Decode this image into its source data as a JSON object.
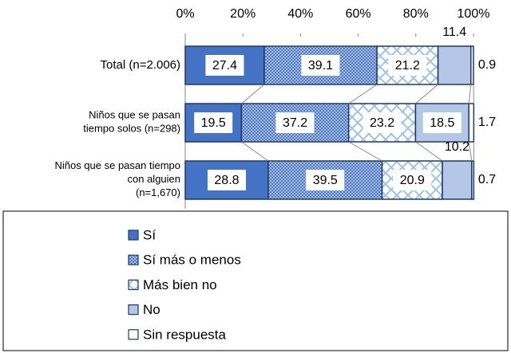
{
  "chart_data": {
    "type": "stacked-bar-horizontal",
    "categories": [
      "Total (n=2.006)",
      "Niños que se pasan\ntiempo solos (n=298)",
      "Niños que se pasan tiempo\ncon alguien\n(n=1,670)"
    ],
    "series": [
      {
        "name": "Sí",
        "color": "#4472c4",
        "pattern": "solid",
        "values": [
          27.4,
          19.5,
          28.8
        ]
      },
      {
        "name": "Sí más o menos",
        "color": "#4472c4",
        "pattern": "dots",
        "values": [
          39.1,
          37.2,
          39.5
        ]
      },
      {
        "name": "Más bien no",
        "color": "#9dc3e6",
        "pattern": "crosshatch",
        "values": [
          21.2,
          23.2,
          20.9
        ]
      },
      {
        "name": "No",
        "color": "#b4c7e7",
        "pattern": "solid",
        "values": [
          11.4,
          18.5,
          10.2
        ]
      },
      {
        "name": "Sin respuesta",
        "color": "#ffffff",
        "pattern": "solid",
        "values": [
          0.9,
          1.7,
          0.7
        ]
      }
    ],
    "xlim": [
      0,
      100
    ],
    "xticks": [
      {
        "value": 0,
        "label": "0%"
      },
      {
        "value": 20,
        "label": "20%"
      },
      {
        "value": 40,
        "label": "40%"
      },
      {
        "value": 60,
        "label": "60%"
      },
      {
        "value": 80,
        "label": "80%"
      },
      {
        "value": 100,
        "label": "100%"
      }
    ]
  }
}
